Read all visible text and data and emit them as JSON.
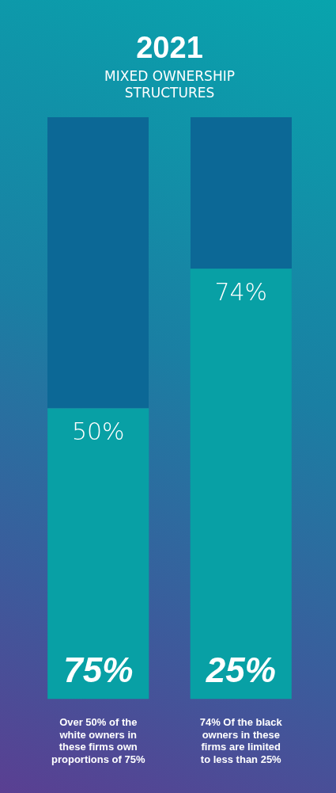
{
  "chart_data": {
    "type": "bar",
    "title": "2021",
    "subtitle": "MIXED OWNERSHIP STRUCTURES",
    "categories": [
      "Over 50% of the white owners in these firms own proportions of 75%",
      "74% Of the black owners in these firms are limited to less than 25%"
    ],
    "ylim": [
      0,
      100
    ],
    "legend": false,
    "grid": false,
    "series": [
      {
        "color": "#08a0a5",
        "values": [
          50,
          74
        ],
        "value_labels": [
          "50%",
          "74%"
        ]
      }
    ],
    "annotations": [
      "75%",
      "25%"
    ]
  }
}
